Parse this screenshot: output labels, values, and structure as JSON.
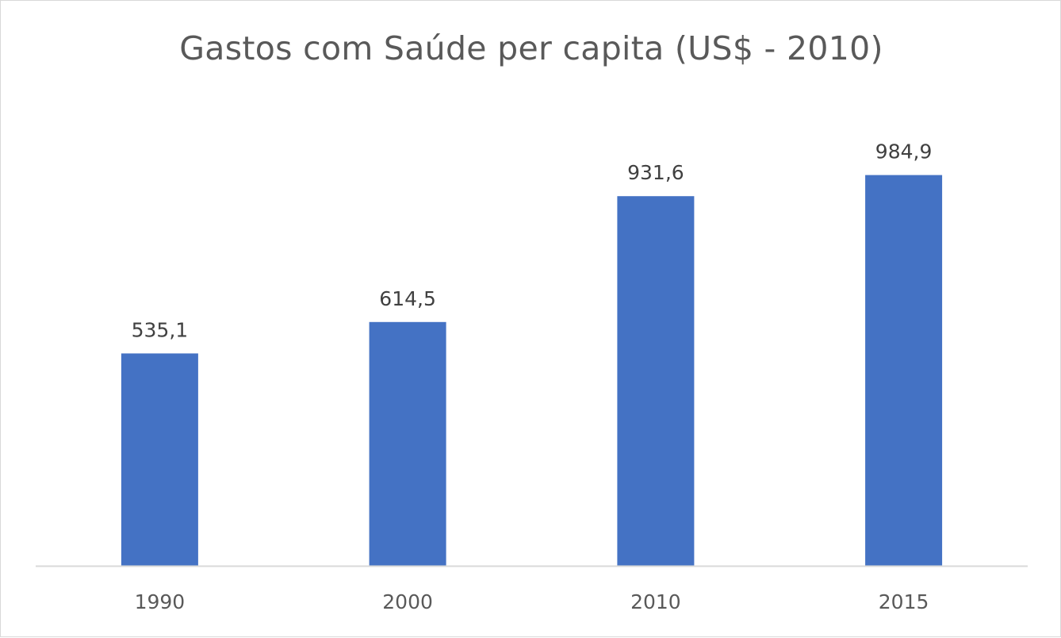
{
  "chart_data": {
    "type": "bar",
    "title": "Gastos com Saúde per capita (US$ - 2010)",
    "categories": [
      "1990",
      "2000",
      "2010",
      "2015"
    ],
    "values": [
      535.1,
      614.5,
      931.6,
      984.9
    ],
    "data_labels": [
      "535,1",
      "614,5",
      "931,6",
      "984,9"
    ],
    "xlabel": "",
    "ylabel": "",
    "ylim": [
      0,
      1100
    ],
    "grid": false,
    "legend": "none",
    "bar_color": "#4472C4",
    "axis_color": "#d9d9d9"
  }
}
